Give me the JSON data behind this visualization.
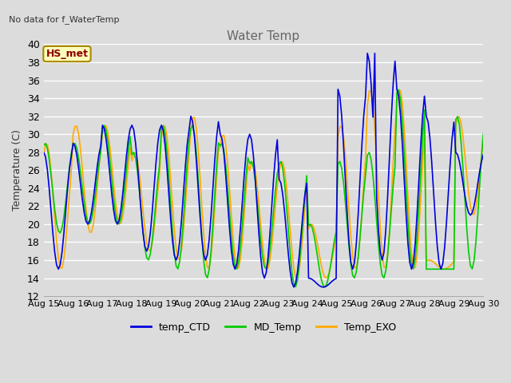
{
  "title": "Water Temp",
  "ylabel": "Temperature (C)",
  "xlabel": "",
  "ylim": [
    12,
    40
  ],
  "yticks": [
    12,
    14,
    16,
    18,
    20,
    22,
    24,
    26,
    28,
    30,
    32,
    34,
    36,
    38,
    40
  ],
  "annotation_text": "No data for f_WaterTemp",
  "box_label": "HS_met",
  "background_color": "#dcdcdc",
  "plot_bg_color": "#dcdcdc",
  "grid_color": "white",
  "series": {
    "temp_CTD": {
      "color": "#0000dd",
      "lw": 1.2
    },
    "MD_Temp": {
      "color": "#00cc00",
      "lw": 1.2
    },
    "Temp_EXO": {
      "color": "#ffaa00",
      "lw": 1.2
    }
  },
  "x_start_day": 15,
  "x_end_day": 30,
  "x_ticks": [
    15,
    16,
    17,
    18,
    19,
    20,
    21,
    22,
    23,
    24,
    25,
    26,
    27,
    28,
    29,
    30
  ],
  "x_tick_labels": [
    "Aug 15",
    "Aug 16",
    "Aug 17",
    "Aug 18",
    "Aug 19",
    "Aug 20",
    "Aug 21",
    "Aug 22",
    "Aug 23",
    "Aug 24",
    "Aug 25",
    "Aug 26",
    "Aug 27",
    "Aug 28",
    "Aug 29",
    "Aug 30"
  ],
  "figwidth": 6.4,
  "figheight": 4.8,
  "dpi": 100
}
